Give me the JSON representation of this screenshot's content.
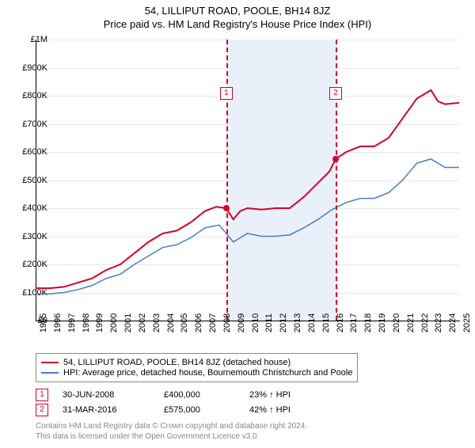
{
  "title_line1": "54, LILLIPUT ROAD, POOLE, BH14 8JZ",
  "title_line2": "Price paid vs. HM Land Registry's House Price Index (HPI)",
  "chart": {
    "type": "line",
    "x_years": [
      1995,
      1996,
      1997,
      1998,
      1999,
      2000,
      2001,
      2002,
      2003,
      2004,
      2005,
      2006,
      2007,
      2008,
      2009,
      2010,
      2011,
      2012,
      2013,
      2014,
      2015,
      2016,
      2017,
      2018,
      2019,
      2020,
      2021,
      2022,
      2023,
      2024,
      2025
    ],
    "ylim": [
      0,
      1000000
    ],
    "ytick_step": 100000,
    "ytick_labels": [
      "£0",
      "£100K",
      "£200K",
      "£300K",
      "£400K",
      "£500K",
      "£600K",
      "£700K",
      "£800K",
      "£900K",
      "£1M"
    ],
    "background_color": "#ffffff",
    "grid_color": "#e8e8e8",
    "series": [
      {
        "name": "property",
        "label": "54, LILLIPUT ROAD, POOLE, BH14 8JZ (detached house)",
        "color": "#d4002a",
        "line_width": 2,
        "data": [
          [
            1995,
            115000
          ],
          [
            1996,
            115000
          ],
          [
            1997,
            120000
          ],
          [
            1998,
            135000
          ],
          [
            1999,
            150000
          ],
          [
            2000,
            180000
          ],
          [
            2001,
            200000
          ],
          [
            2002,
            240000
          ],
          [
            2003,
            280000
          ],
          [
            2004,
            310000
          ],
          [
            2005,
            320000
          ],
          [
            2006,
            350000
          ],
          [
            2007,
            390000
          ],
          [
            2007.8,
            405000
          ],
          [
            2008.5,
            400000
          ],
          [
            2009,
            360000
          ],
          [
            2009.5,
            390000
          ],
          [
            2010,
            400000
          ],
          [
            2011,
            395000
          ],
          [
            2012,
            400000
          ],
          [
            2013,
            400000
          ],
          [
            2014,
            440000
          ],
          [
            2015,
            490000
          ],
          [
            2015.8,
            530000
          ],
          [
            2016.25,
            575000
          ],
          [
            2017,
            600000
          ],
          [
            2018,
            620000
          ],
          [
            2019,
            620000
          ],
          [
            2020,
            650000
          ],
          [
            2021,
            720000
          ],
          [
            2022,
            790000
          ],
          [
            2023,
            820000
          ],
          [
            2023.5,
            780000
          ],
          [
            2024,
            770000
          ],
          [
            2025,
            775000
          ]
        ]
      },
      {
        "name": "hpi",
        "label": "HPI: Average price, detached house, Bournemouth Christchurch and Poole",
        "color": "#4a7bc8",
        "line_width": 1.5,
        "data": [
          [
            1995,
            95000
          ],
          [
            1996,
            95000
          ],
          [
            1997,
            100000
          ],
          [
            1998,
            110000
          ],
          [
            1999,
            125000
          ],
          [
            2000,
            150000
          ],
          [
            2001,
            165000
          ],
          [
            2002,
            200000
          ],
          [
            2003,
            230000
          ],
          [
            2004,
            260000
          ],
          [
            2005,
            270000
          ],
          [
            2006,
            295000
          ],
          [
            2007,
            330000
          ],
          [
            2008,
            340000
          ],
          [
            2009,
            280000
          ],
          [
            2010,
            310000
          ],
          [
            2011,
            300000
          ],
          [
            2012,
            300000
          ],
          [
            2013,
            305000
          ],
          [
            2014,
            330000
          ],
          [
            2015,
            360000
          ],
          [
            2016,
            395000
          ],
          [
            2017,
            420000
          ],
          [
            2018,
            435000
          ],
          [
            2019,
            435000
          ],
          [
            2020,
            455000
          ],
          [
            2021,
            500000
          ],
          [
            2022,
            560000
          ],
          [
            2023,
            575000
          ],
          [
            2024,
            545000
          ],
          [
            2025,
            545000
          ]
        ]
      }
    ],
    "shaded_band": {
      "x_start": 2008.5,
      "x_end": 2016.25,
      "color": "#eaf0fa"
    },
    "vlines": [
      {
        "x": 2008.5,
        "color": "#d4002a",
        "marker_num": "1",
        "marker_y_offset": 60
      },
      {
        "x": 2016.25,
        "color": "#d4002a",
        "marker_num": "2",
        "marker_y_offset": 60
      }
    ],
    "sale_points": [
      {
        "x": 2008.5,
        "y": 400000,
        "color": "#d4002a"
      },
      {
        "x": 2016.25,
        "y": 575000,
        "color": "#d4002a"
      }
    ]
  },
  "transactions": [
    {
      "num": "1",
      "date": "30-JUN-2008",
      "price": "£400,000",
      "delta": "23% ↑ HPI",
      "color": "#d4002a"
    },
    {
      "num": "2",
      "date": "31-MAR-2016",
      "price": "£575,000",
      "delta": "42% ↑ HPI",
      "color": "#d4002a"
    }
  ],
  "footnote_line1": "Contains HM Land Registry data © Crown copyright and database right 2024.",
  "footnote_line2": "This data is licensed under the Open Government Licence v3.0."
}
